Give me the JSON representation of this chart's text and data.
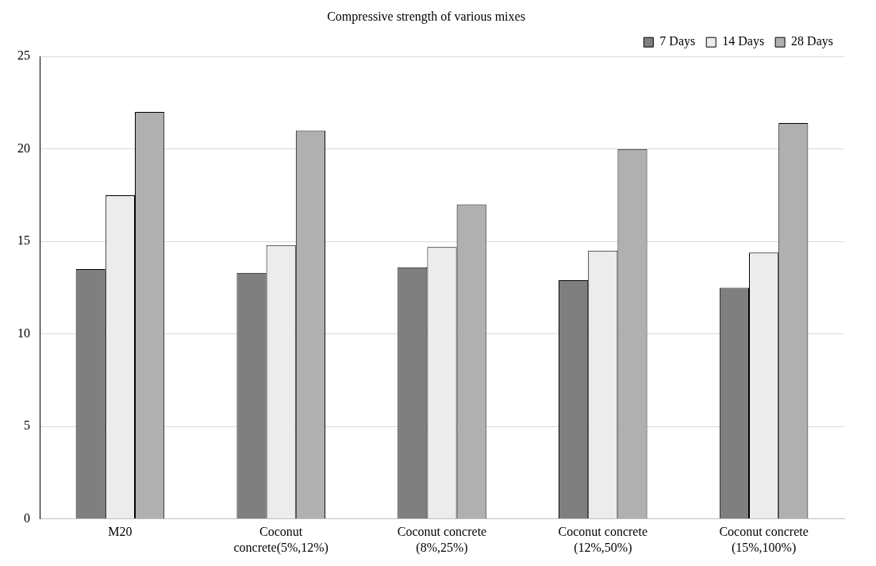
{
  "chart_data": {
    "type": "bar",
    "title": "Compressive strength of various mixes",
    "categories": [
      "M20",
      "Coconut concrete(5%,12%)",
      "Coconut concrete (8%,25%)",
      "Coconut concrete (12%,50%)",
      "Coconut concrete (15%,100%)"
    ],
    "series": [
      {
        "name": "7 Days",
        "color": "#7f7f7f",
        "values": [
          13.5,
          13.3,
          13.6,
          12.9,
          12.5
        ]
      },
      {
        "name": "14 Days",
        "color": "#ececec",
        "values": [
          17.5,
          14.8,
          14.7,
          14.5,
          14.4
        ]
      },
      {
        "name": "28 Days",
        "color": "#b0b0b0",
        "values": [
          22,
          21,
          17,
          20,
          21.4
        ]
      }
    ],
    "ylim": [
      0,
      25
    ],
    "yticks": [
      0,
      5,
      10,
      15,
      20,
      25
    ],
    "grid": "y",
    "legend": "top right"
  }
}
